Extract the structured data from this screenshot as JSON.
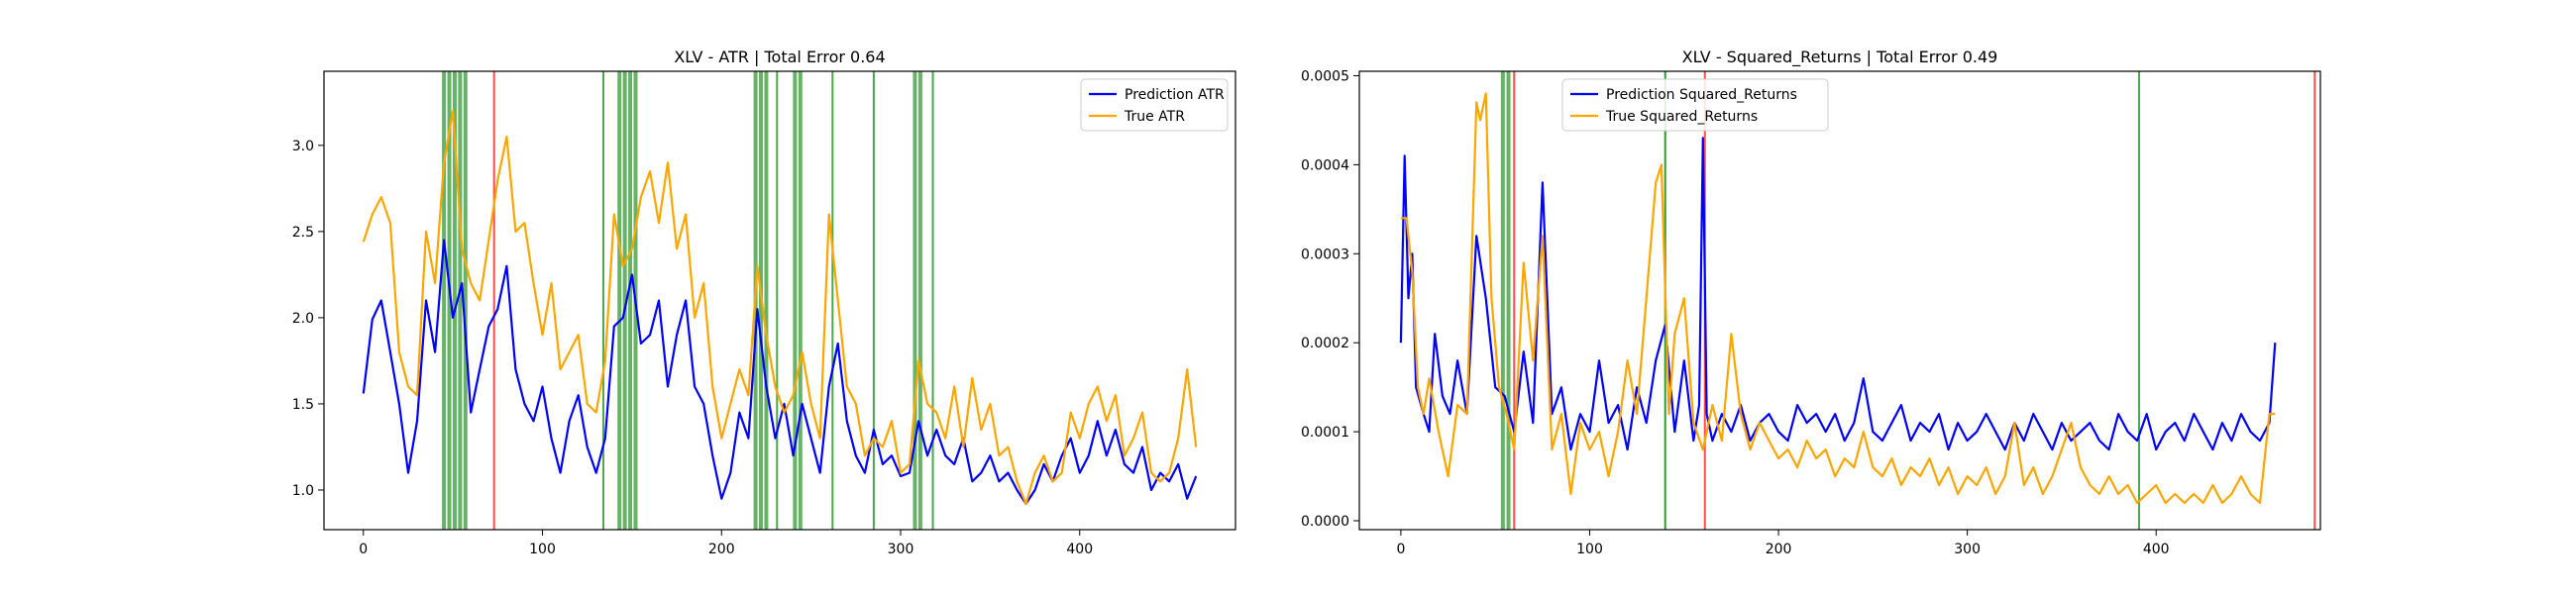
{
  "chart_data": [
    {
      "type": "line",
      "title": "XLV - ATR | Total Error 0.64",
      "xlabel": "",
      "ylabel": "",
      "xlim": [
        -22,
        487
      ],
      "ylim": [
        0.77,
        3.43
      ],
      "xticks": [
        0,
        100,
        200,
        300,
        400
      ],
      "yticks": [
        1.0,
        1.5,
        2.0,
        2.5,
        3.0
      ],
      "ytick_decimals": 1,
      "grid": false,
      "legend": "top-right",
      "series": [
        {
          "name": "Prediction ATR",
          "color": "#0000ff",
          "x": [
            0,
            5,
            10,
            15,
            20,
            25,
            30,
            35,
            40,
            45,
            50,
            55,
            60,
            65,
            70,
            75,
            80,
            85,
            90,
            95,
            100,
            105,
            110,
            115,
            120,
            125,
            130,
            135,
            140,
            145,
            150,
            155,
            160,
            165,
            170,
            175,
            180,
            185,
            190,
            195,
            200,
            205,
            210,
            215,
            220,
            225,
            230,
            235,
            240,
            245,
            250,
            255,
            260,
            265,
            270,
            275,
            280,
            285,
            290,
            295,
            300,
            305,
            310,
            315,
            320,
            325,
            330,
            335,
            340,
            345,
            350,
            355,
            360,
            365,
            370,
            375,
            380,
            385,
            390,
            395,
            400,
            405,
            410,
            415,
            420,
            425,
            430,
            435,
            440,
            445,
            450,
            455,
            460,
            465
          ],
          "values": [
            1.56,
            1.99,
            2.1,
            1.8,
            1.5,
            1.1,
            1.4,
            2.1,
            1.8,
            2.45,
            2.0,
            2.2,
            1.45,
            1.7,
            1.95,
            2.05,
            2.3,
            1.7,
            1.5,
            1.4,
            1.6,
            1.3,
            1.1,
            1.4,
            1.55,
            1.25,
            1.1,
            1.3,
            1.95,
            2.0,
            2.25,
            1.85,
            1.9,
            2.1,
            1.6,
            1.9,
            2.1,
            1.6,
            1.5,
            1.2,
            0.95,
            1.1,
            1.45,
            1.3,
            2.05,
            1.6,
            1.3,
            1.5,
            1.2,
            1.5,
            1.3,
            1.1,
            1.6,
            1.85,
            1.4,
            1.2,
            1.1,
            1.35,
            1.15,
            1.2,
            1.08,
            1.1,
            1.4,
            1.2,
            1.35,
            1.2,
            1.15,
            1.3,
            1.05,
            1.1,
            1.2,
            1.05,
            1.1,
            1.0,
            0.92,
            1.0,
            1.15,
            1.05,
            1.2,
            1.3,
            1.1,
            1.2,
            1.4,
            1.2,
            1.35,
            1.15,
            1.1,
            1.25,
            1.0,
            1.1,
            1.05,
            1.15,
            0.95,
            1.08
          ]
        },
        {
          "name": "True ATR",
          "color": "#ffa500",
          "x": [
            0,
            5,
            10,
            15,
            20,
            25,
            30,
            35,
            40,
            45,
            50,
            55,
            60,
            65,
            70,
            75,
            80,
            85,
            90,
            95,
            100,
            105,
            110,
            115,
            120,
            125,
            130,
            135,
            140,
            145,
            150,
            155,
            160,
            165,
            170,
            175,
            180,
            185,
            190,
            195,
            200,
            205,
            210,
            215,
            220,
            225,
            230,
            235,
            240,
            245,
            250,
            255,
            260,
            265,
            270,
            275,
            280,
            285,
            290,
            295,
            300,
            305,
            310,
            315,
            320,
            325,
            330,
            335,
            340,
            345,
            350,
            355,
            360,
            365,
            370,
            375,
            380,
            385,
            390,
            395,
            400,
            405,
            410,
            415,
            420,
            425,
            430,
            435,
            440,
            445,
            450,
            455,
            460,
            465
          ],
          "values": [
            2.44,
            2.6,
            2.7,
            2.55,
            1.8,
            1.6,
            1.55,
            2.5,
            2.2,
            2.9,
            3.2,
            2.4,
            2.2,
            2.1,
            2.45,
            2.8,
            3.05,
            2.5,
            2.55,
            2.2,
            1.9,
            2.2,
            1.7,
            1.8,
            1.9,
            1.5,
            1.45,
            1.75,
            2.6,
            2.3,
            2.4,
            2.7,
            2.85,
            2.55,
            2.9,
            2.4,
            2.6,
            2.0,
            2.2,
            1.6,
            1.3,
            1.5,
            1.7,
            1.55,
            2.3,
            1.9,
            1.6,
            1.45,
            1.55,
            1.8,
            1.5,
            1.3,
            2.6,
            2.1,
            1.6,
            1.5,
            1.2,
            1.3,
            1.25,
            1.4,
            1.1,
            1.15,
            1.75,
            1.5,
            1.45,
            1.3,
            1.6,
            1.25,
            1.65,
            1.35,
            1.5,
            1.2,
            1.25,
            1.05,
            0.92,
            1.1,
            1.2,
            1.05,
            1.1,
            1.45,
            1.3,
            1.5,
            1.6,
            1.4,
            1.55,
            1.2,
            1.3,
            1.45,
            1.1,
            1.05,
            1.1,
            1.3,
            1.7,
            1.25
          ]
        }
      ],
      "vlines": [
        {
          "x": 45,
          "color": "#008000",
          "alpha": 0.6,
          "width": 4
        },
        {
          "x": 48,
          "color": "#008000",
          "alpha": 0.6,
          "width": 4
        },
        {
          "x": 51,
          "color": "#008000",
          "alpha": 0.6,
          "width": 4
        },
        {
          "x": 54,
          "color": "#008000",
          "alpha": 0.6,
          "width": 4
        },
        {
          "x": 57,
          "color": "#008000",
          "alpha": 0.6,
          "width": 4
        },
        {
          "x": 73,
          "color": "#ff0000",
          "alpha": 0.7,
          "width": 2
        },
        {
          "x": 134,
          "color": "#008000",
          "alpha": 0.7,
          "width": 2
        },
        {
          "x": 143,
          "color": "#008000",
          "alpha": 0.6,
          "width": 4
        },
        {
          "x": 146,
          "color": "#008000",
          "alpha": 0.6,
          "width": 4
        },
        {
          "x": 149,
          "color": "#008000",
          "alpha": 0.6,
          "width": 4
        },
        {
          "x": 152,
          "color": "#008000",
          "alpha": 0.6,
          "width": 4
        },
        {
          "x": 219,
          "color": "#008000",
          "alpha": 0.6,
          "width": 4
        },
        {
          "x": 222,
          "color": "#008000",
          "alpha": 0.6,
          "width": 4
        },
        {
          "x": 225,
          "color": "#008000",
          "alpha": 0.6,
          "width": 4
        },
        {
          "x": 231,
          "color": "#008000",
          "alpha": 0.7,
          "width": 2
        },
        {
          "x": 241,
          "color": "#008000",
          "alpha": 0.6,
          "width": 4
        },
        {
          "x": 244,
          "color": "#008000",
          "alpha": 0.6,
          "width": 4
        },
        {
          "x": 262,
          "color": "#008000",
          "alpha": 0.7,
          "width": 2
        },
        {
          "x": 285,
          "color": "#008000",
          "alpha": 0.7,
          "width": 2
        },
        {
          "x": 308,
          "color": "#008000",
          "alpha": 0.6,
          "width": 4
        },
        {
          "x": 311,
          "color": "#008000",
          "alpha": 0.6,
          "width": 4
        },
        {
          "x": 318,
          "color": "#008000",
          "alpha": 0.7,
          "width": 2
        }
      ]
    },
    {
      "type": "line",
      "title": "XLV - Squared_Returns | Total Error 0.49",
      "xlabel": "",
      "ylabel": "",
      "xlim": [
        -22,
        487
      ],
      "ylim": [
        -1e-05,
        0.000505
      ],
      "xticks": [
        0,
        100,
        200,
        300,
        400
      ],
      "yticks": [
        0.0,
        0.0001,
        0.0002,
        0.0003,
        0.0004,
        0.0005
      ],
      "ytick_decimals": 4,
      "grid": false,
      "legend": "top-left",
      "series": [
        {
          "name": "Prediction Squared_Returns",
          "color": "#0000ff",
          "x": [
            0,
            2,
            4,
            6,
            8,
            12,
            15,
            18,
            22,
            26,
            30,
            35,
            40,
            45,
            50,
            55,
            60,
            65,
            70,
            75,
            80,
            85,
            90,
            95,
            100,
            105,
            110,
            115,
            120,
            125,
            130,
            135,
            140,
            145,
            150,
            155,
            158,
            160,
            162,
            165,
            170,
            175,
            180,
            185,
            190,
            195,
            200,
            205,
            210,
            215,
            220,
            225,
            230,
            235,
            240,
            245,
            250,
            255,
            260,
            265,
            270,
            275,
            280,
            285,
            290,
            295,
            300,
            305,
            310,
            315,
            320,
            325,
            330,
            335,
            340,
            345,
            350,
            355,
            360,
            365,
            370,
            375,
            380,
            385,
            390,
            395,
            400,
            405,
            410,
            415,
            420,
            425,
            430,
            435,
            440,
            445,
            450,
            455,
            460,
            463
          ],
          "values": [
            0.0002,
            0.00041,
            0.00025,
            0.0003,
            0.00015,
            0.00012,
            0.0001,
            0.00021,
            0.00014,
            0.00012,
            0.00018,
            0.00012,
            0.00032,
            0.00025,
            0.00015,
            0.00014,
            0.0001,
            0.00019,
            0.00011,
            0.00038,
            0.00012,
            0.00015,
            8e-05,
            0.00012,
            0.0001,
            0.00018,
            0.00011,
            0.00013,
            8e-05,
            0.00015,
            0.00011,
            0.00018,
            0.00022,
            0.0001,
            0.00018,
            9e-05,
            0.00013,
            0.00043,
            0.00012,
            9e-05,
            0.00012,
            0.0001,
            0.00013,
            9e-05,
            0.00011,
            0.00012,
            0.0001,
            9e-05,
            0.00013,
            0.00011,
            0.00012,
            0.0001,
            0.00012,
            9e-05,
            0.00011,
            0.00016,
            0.0001,
            9e-05,
            0.00011,
            0.00013,
            9e-05,
            0.00011,
            0.0001,
            0.00012,
            8e-05,
            0.00011,
            9e-05,
            0.0001,
            0.00012,
            0.0001,
            8e-05,
            0.00011,
            9e-05,
            0.00012,
            0.0001,
            8e-05,
            0.00011,
            9e-05,
            0.0001,
            0.00011,
            9e-05,
            8e-05,
            0.00012,
            0.0001,
            9e-05,
            0.00012,
            8e-05,
            0.0001,
            0.00011,
            9e-05,
            0.00012,
            0.0001,
            8e-05,
            0.00011,
            9e-05,
            0.00012,
            0.0001,
            9e-05,
            0.00011,
            0.0002
          ]
        },
        {
          "name": "True Squared_Returns",
          "color": "#ffa500",
          "x": [
            0,
            3,
            6,
            9,
            12,
            15,
            20,
            25,
            30,
            35,
            40,
            42,
            45,
            48,
            52,
            56,
            60,
            65,
            70,
            75,
            80,
            85,
            90,
            95,
            100,
            105,
            110,
            115,
            120,
            125,
            130,
            135,
            138,
            142,
            145,
            150,
            155,
            160,
            165,
            170,
            175,
            180,
            185,
            190,
            195,
            200,
            205,
            210,
            215,
            220,
            225,
            230,
            235,
            240,
            245,
            250,
            255,
            260,
            265,
            270,
            275,
            280,
            285,
            290,
            295,
            300,
            305,
            310,
            315,
            320,
            325,
            330,
            335,
            340,
            345,
            350,
            355,
            360,
            365,
            370,
            375,
            380,
            385,
            390,
            395,
            400,
            405,
            410,
            415,
            420,
            425,
            430,
            435,
            440,
            445,
            450,
            455,
            460,
            463
          ],
          "values": [
            0.00034,
            0.00034,
            0.00028,
            0.00015,
            0.00012,
            0.00016,
            0.0001,
            5e-05,
            0.00013,
            0.00012,
            0.00047,
            0.00045,
            0.00048,
            0.00025,
            0.00015,
            0.00012,
            8e-05,
            0.00029,
            0.00018,
            0.00032,
            8e-05,
            0.00012,
            3e-05,
            0.00011,
            8e-05,
            0.0001,
            5e-05,
            0.0001,
            0.00018,
            0.00012,
            0.00025,
            0.00038,
            0.0004,
            0.00012,
            0.00021,
            0.00025,
            0.00011,
            8e-05,
            0.00013,
            9e-05,
            0.00021,
            0.00012,
            8e-05,
            0.00011,
            9e-05,
            7e-05,
            8e-05,
            6e-05,
            9e-05,
            7e-05,
            8e-05,
            5e-05,
            7e-05,
            6e-05,
            0.0001,
            6e-05,
            5e-05,
            7e-05,
            4e-05,
            6e-05,
            5e-05,
            7e-05,
            4e-05,
            6e-05,
            3e-05,
            5e-05,
            4e-05,
            6e-05,
            3e-05,
            5e-05,
            0.00011,
            4e-05,
            6e-05,
            3e-05,
            5e-05,
            8e-05,
            0.00011,
            6e-05,
            4e-05,
            3e-05,
            5e-05,
            3e-05,
            4e-05,
            2e-05,
            3e-05,
            4e-05,
            2e-05,
            3e-05,
            2e-05,
            3e-05,
            2e-05,
            4e-05,
            2e-05,
            3e-05,
            5e-05,
            3e-05,
            2e-05,
            0.00012,
            0.00012
          ]
        }
      ],
      "vlines": [
        {
          "x": 54,
          "color": "#008000",
          "alpha": 0.6,
          "width": 4
        },
        {
          "x": 57,
          "color": "#008000",
          "alpha": 0.6,
          "width": 4
        },
        {
          "x": 60,
          "color": "#ff0000",
          "alpha": 0.7,
          "width": 2
        },
        {
          "x": 140,
          "color": "#008000",
          "alpha": 0.8,
          "width": 2
        },
        {
          "x": 161,
          "color": "#ff0000",
          "alpha": 0.7,
          "width": 2
        },
        {
          "x": 391,
          "color": "#008000",
          "alpha": 0.7,
          "width": 2
        },
        {
          "x": 484,
          "color": "#ff0000",
          "alpha": 0.7,
          "width": 2
        }
      ]
    }
  ]
}
